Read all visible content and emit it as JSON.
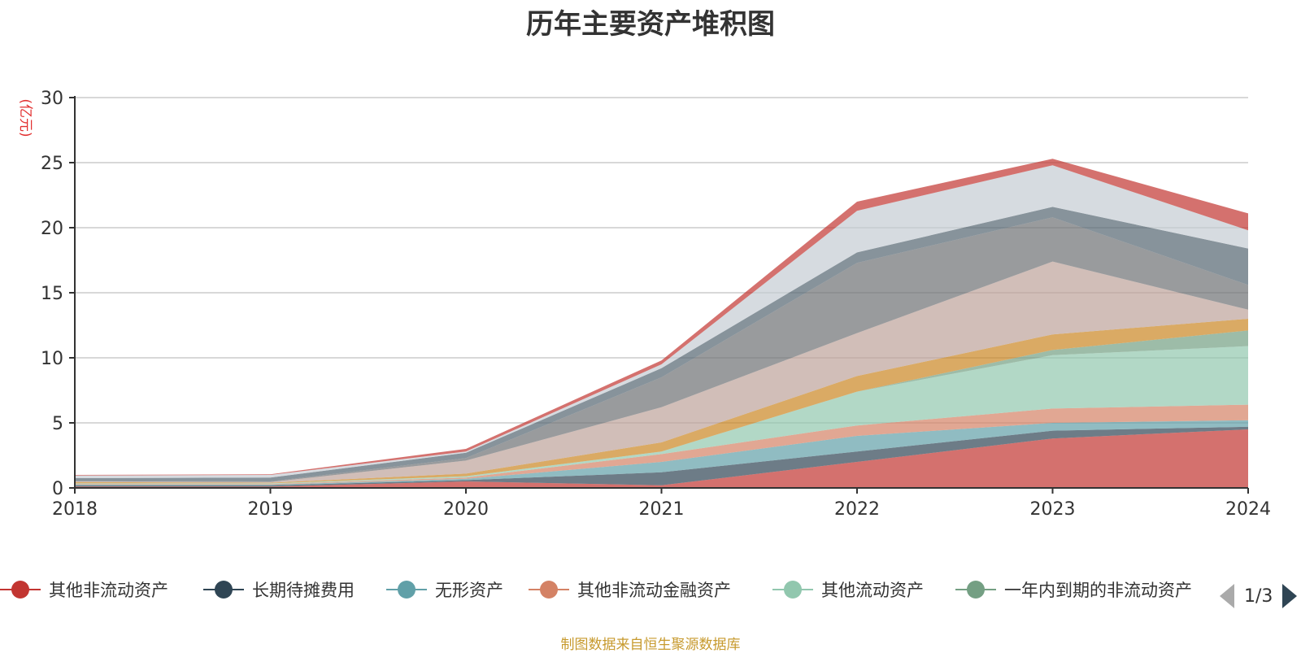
{
  "chart_data": {
    "type": "area",
    "stacked": true,
    "title": "历年主要资产堆积图",
    "ylabel": "亿元",
    "xlabel": "",
    "x": [
      "2018",
      "2019",
      "2020",
      "2021",
      "2022",
      "2023",
      "2024"
    ],
    "ylim": [
      0,
      30
    ],
    "yticks": [
      "0",
      "5",
      "10",
      "15",
      "20",
      "25",
      "30"
    ],
    "grid": true,
    "legend_position": "bottom",
    "series": [
      {
        "name": "其他非流动资产",
        "color": "#c23531",
        "values": [
          0.1,
          0.1,
          0.5,
          0.2,
          2.0,
          3.8,
          4.5
        ]
      },
      {
        "name": "长期待摊费用",
        "color": "#2f4554",
        "values": [
          0.1,
          0.1,
          0.1,
          1.0,
          0.8,
          0.6,
          0.2
        ]
      },
      {
        "name": "无形资产",
        "color": "#61a0a8",
        "values": [
          0.05,
          0.05,
          0.1,
          0.8,
          1.2,
          0.6,
          0.5
        ]
      },
      {
        "name": "其他非流动金融资产",
        "color": "#d48265",
        "values": [
          0.05,
          0.05,
          0.1,
          0.6,
          0.8,
          1.1,
          1.2
        ]
      },
      {
        "name": "其他流动资产",
        "color": "#91c7ae",
        "values": [
          0.05,
          0.05,
          0.1,
          0.2,
          2.6,
          4.1,
          4.5
        ]
      },
      {
        "name": "一年内到期的非流动资产",
        "color": "#749f83",
        "values": [
          0.0,
          0.0,
          0.0,
          0.0,
          0.0,
          0.4,
          1.2
        ]
      },
      {
        "name": "",
        "color": "#ca8622",
        "values": [
          0.1,
          0.05,
          0.2,
          0.7,
          1.2,
          1.2,
          0.9
        ]
      },
      {
        "name": "",
        "color": "#bda29a",
        "values": [
          0.05,
          0.05,
          1.0,
          2.7,
          3.3,
          5.6,
          0.7
        ]
      },
      {
        "name": "",
        "color": "#6e7074",
        "values": [
          0.05,
          0.05,
          0.2,
          2.3,
          5.4,
          3.4,
          1.9
        ]
      },
      {
        "name": "",
        "color": "#546570",
        "values": [
          0.2,
          0.3,
          0.4,
          0.7,
          0.8,
          0.8,
          2.8
        ]
      },
      {
        "name": "",
        "color": "#c4ccd3",
        "values": [
          0.2,
          0.2,
          0.1,
          0.3,
          3.2,
          3.2,
          1.4
        ]
      },
      {
        "name": "",
        "color": "#c23531",
        "values": [
          0.05,
          0.05,
          0.2,
          0.3,
          0.7,
          0.5,
          1.3
        ]
      }
    ]
  },
  "legend": {
    "page_indicator": "1/3"
  },
  "source_note": "制图数据来自恒生聚源数据库"
}
